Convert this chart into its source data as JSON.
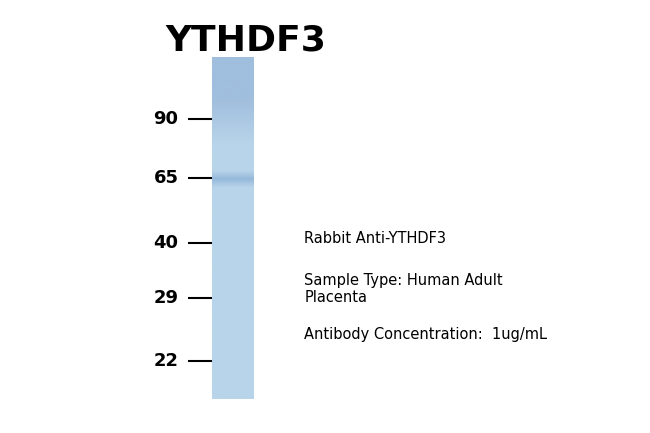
{
  "title": "YTHDF3",
  "title_fontsize": 26,
  "title_fontweight": "bold",
  "background_color": "#ffffff",
  "lane_color_uniform": "#b8d4ea",
  "lane_color_top": "#a0bedd",
  "lane_color_band": "#8fb8d8",
  "band_label": "65",
  "mw_markers": [
    {
      "label": "90",
      "rel": 0.82
    },
    {
      "label": "65",
      "rel": 0.645
    },
    {
      "label": "40",
      "rel": 0.455
    },
    {
      "label": "29",
      "rel": 0.295
    },
    {
      "label": "22",
      "rel": 0.11
    }
  ],
  "marker_fontsize": 13,
  "marker_fontweight": "bold",
  "annotation_lines": [
    "Rabbit Anti-YTHDF3",
    "Sample Type: Human Adult\nPlacenta",
    "Antibody Concentration:  1ug/mL"
  ],
  "annotation_fontsize": 10.5,
  "fig_width": 6.5,
  "fig_height": 4.33
}
